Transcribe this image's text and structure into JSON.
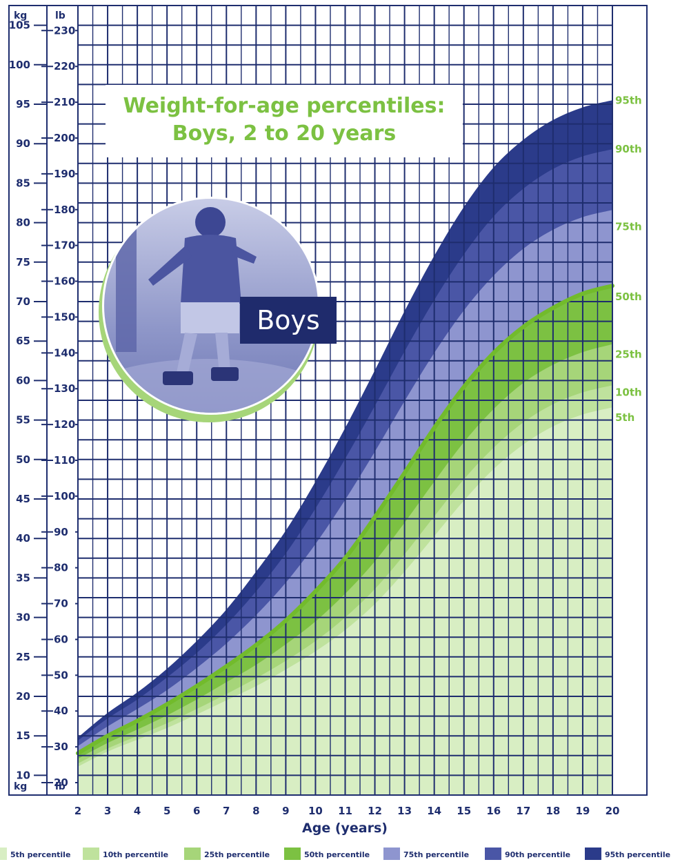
{
  "chart_data": {
    "type": "area",
    "title": "Weight-for-age percentiles:",
    "subtitle": "Boys, 2 to 20 years",
    "xlabel": "Age (years)",
    "x": [
      2,
      3,
      4,
      5,
      6,
      7,
      8,
      9,
      10,
      11,
      12,
      13,
      14,
      15,
      16,
      17,
      18,
      19,
      20
    ],
    "xlim": [
      2,
      20
    ],
    "ylim_kg": [
      7.5,
      107.5
    ],
    "left_axis_unit": "kg",
    "right_axis_unit": "lb",
    "kg_ticks": [
      10,
      15,
      20,
      25,
      30,
      35,
      40,
      45,
      50,
      55,
      60,
      65,
      70,
      75,
      80,
      85,
      90,
      95,
      100,
      105
    ],
    "lb_ticks": [
      20,
      30,
      40,
      50,
      60,
      70,
      80,
      90,
      100,
      110,
      120,
      130,
      140,
      150,
      160,
      170,
      180,
      190,
      200,
      210,
      220,
      230
    ],
    "grid": true,
    "series": [
      {
        "name": "95th",
        "color": "#2b3b8a",
        "values": [
          14.8,
          17.9,
          20.5,
          23.5,
          27.0,
          31.0,
          35.8,
          41.0,
          47.2,
          54.0,
          61.3,
          68.8,
          75.8,
          82.0,
          87.0,
          90.5,
          93.0,
          94.6,
          95.5
        ]
      },
      {
        "name": "90th",
        "color": "#4a56a6",
        "values": [
          14.4,
          17.2,
          19.6,
          22.4,
          25.5,
          29.1,
          33.3,
          38.1,
          43.8,
          50.1,
          56.8,
          63.7,
          70.2,
          76.0,
          80.8,
          84.3,
          86.8,
          88.4,
          89.3
        ]
      },
      {
        "name": "75th",
        "color": "#8e95cf",
        "values": [
          13.7,
          16.2,
          18.4,
          20.8,
          23.6,
          26.7,
          30.3,
          34.4,
          39.3,
          44.9,
          51.0,
          57.4,
          63.5,
          68.9,
          73.3,
          76.7,
          79.1,
          80.7,
          81.6
        ]
      },
      {
        "name": "50th",
        "color": "#7cc142",
        "values": [
          12.8,
          15.0,
          16.9,
          19.0,
          21.3,
          23.8,
          26.5,
          29.6,
          33.3,
          37.5,
          42.7,
          48.3,
          54.0,
          59.2,
          63.5,
          66.8,
          69.2,
          71.0,
          72.0
        ]
      },
      {
        "name": "25th",
        "color": "#a6d579",
        "values": [
          12.1,
          14.1,
          15.8,
          17.6,
          19.6,
          21.8,
          24.0,
          26.6,
          29.5,
          33.0,
          37.1,
          42.0,
          47.2,
          52.2,
          56.4,
          59.7,
          62.0,
          63.6,
          64.6
        ]
      },
      {
        "name": "10th",
        "color": "#bfe29d",
        "values": [
          11.5,
          13.4,
          15.0,
          16.6,
          18.4,
          20.3,
          22.3,
          24.5,
          27.0,
          30.0,
          33.6,
          38.0,
          42.8,
          47.5,
          51.5,
          54.7,
          57.0,
          58.5,
          59.4
        ]
      },
      {
        "name": "5th",
        "color": "#d8eec3",
        "values": [
          11.1,
          13.0,
          14.5,
          16.0,
          17.7,
          19.5,
          21.3,
          23.4,
          25.7,
          28.4,
          31.7,
          35.8,
          40.3,
          44.8,
          48.8,
          51.9,
          54.2,
          55.7,
          56.6
        ]
      }
    ],
    "label_positions_kg": [
      {
        "label": "95th",
        "y": 95.5
      },
      {
        "label": "90th",
        "y": 89.3
      },
      {
        "label": "75th",
        "y": 79.5
      },
      {
        "label": "50th",
        "y": 70.6
      },
      {
        "label": "25th",
        "y": 63.3
      },
      {
        "label": "10th",
        "y": 58.5
      },
      {
        "label": "5th",
        "y": 55.3
      }
    ],
    "legend": [
      {
        "label": "5th percentile",
        "color": "#d8eec3"
      },
      {
        "label": "10th percentile",
        "color": "#bfe29d"
      },
      {
        "label": "25th percentile",
        "color": "#a6d579"
      },
      {
        "label": "50th percentile",
        "color": "#7cc142"
      },
      {
        "label": "75th percentile",
        "color": "#8e95cf"
      },
      {
        "label": "90th percentile",
        "color": "#4a56a6"
      },
      {
        "label": "95th percentile",
        "color": "#2b3b8a"
      }
    ],
    "legend_placement": "bottom"
  },
  "photo": {
    "badge_text": "Boys"
  },
  "colors": {
    "navy": "#1e2d6e",
    "grid": "#1e2d6e",
    "green_title": "#7cc142",
    "median_line": "#72bb2c"
  }
}
